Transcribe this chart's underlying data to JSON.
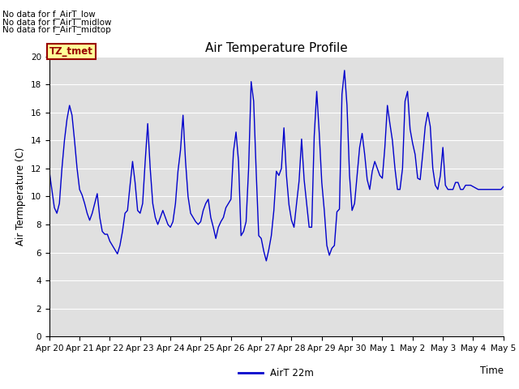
{
  "title": "Air Temperature Profile",
  "xlabel": "Time",
  "ylabel": "Air Termperature (C)",
  "ylim": [
    0,
    20
  ],
  "yticks": [
    0,
    2,
    4,
    6,
    8,
    10,
    12,
    14,
    16,
    18,
    20
  ],
  "line_color": "#0000cc",
  "background_color": "#e0e0e0",
  "legend_label": "AirT 22m",
  "no_data_texts": [
    "No data for f_AirT_low",
    "No data for f_AirT_midlow",
    "No data for f_AirT_midtop"
  ],
  "legend_box_color": "#990000",
  "legend_box_bg": "#ffff99",
  "x_tick_labels": [
    "Apr 20",
    "Apr 21",
    "Apr 22",
    "Apr 23",
    "Apr 24",
    "Apr 25",
    "Apr 26",
    "Apr 27",
    "Apr 28",
    "Apr 29",
    "Apr 30",
    "May 1",
    "May 2",
    "May 3",
    "May 4",
    "May 5"
  ],
  "time_values": [
    0.0,
    0.083,
    0.167,
    0.25,
    0.333,
    0.417,
    0.5,
    0.583,
    0.667,
    0.75,
    0.833,
    0.917,
    1.0,
    1.083,
    1.167,
    1.25,
    1.333,
    1.417,
    1.5,
    1.583,
    1.667,
    1.75,
    1.833,
    1.917,
    2.0,
    2.083,
    2.167,
    2.25,
    2.333,
    2.417,
    2.5,
    2.583,
    2.667,
    2.75,
    2.833,
    2.917,
    3.0,
    3.083,
    3.167,
    3.25,
    3.333,
    3.417,
    3.5,
    3.583,
    3.667,
    3.75,
    3.833,
    3.917,
    4.0,
    4.083,
    4.167,
    4.25,
    4.333,
    4.417,
    4.5,
    4.583,
    4.667,
    4.75,
    4.833,
    4.917,
    5.0,
    5.083,
    5.167,
    5.25,
    5.333,
    5.417,
    5.5,
    5.583,
    5.667,
    5.75,
    5.833,
    5.917,
    6.0,
    6.083,
    6.167,
    6.25,
    6.333,
    6.417,
    6.5,
    6.583,
    6.667,
    6.75,
    6.833,
    6.917,
    7.0,
    7.083,
    7.167,
    7.25,
    7.333,
    7.417,
    7.5,
    7.583,
    7.667,
    7.75,
    7.833,
    7.917,
    8.0,
    8.083,
    8.167,
    8.25,
    8.333,
    8.417,
    8.5,
    8.583,
    8.667,
    8.75,
    8.833,
    8.917,
    9.0,
    9.083,
    9.167,
    9.25,
    9.333,
    9.417,
    9.5,
    9.583,
    9.667,
    9.75,
    9.833,
    9.917,
    10.0,
    10.083,
    10.167,
    10.25,
    10.333,
    10.417,
    10.5,
    10.583,
    10.667,
    10.75,
    10.833,
    10.917,
    11.0,
    11.083,
    11.167,
    11.25,
    11.333,
    11.417,
    11.5,
    11.583,
    11.667,
    11.75,
    11.833,
    11.917,
    12.0,
    12.083,
    12.167,
    12.25,
    12.333,
    12.417,
    12.5,
    12.583,
    12.667,
    12.75,
    12.833,
    12.917,
    13.0,
    13.083,
    13.167,
    13.25,
    13.333,
    13.417,
    13.5,
    13.583,
    13.667,
    13.75,
    13.833,
    13.917,
    14.0,
    14.083,
    14.167,
    14.25,
    14.333,
    14.417,
    14.5,
    14.583,
    14.667,
    14.75,
    14.833,
    14.917,
    15.0
  ],
  "temp_values": [
    11.8,
    10.5,
    9.2,
    8.8,
    9.5,
    12.0,
    14.0,
    15.5,
    16.5,
    15.8,
    14.0,
    12.0,
    10.5,
    10.1,
    9.5,
    8.8,
    8.3,
    8.8,
    9.5,
    10.2,
    8.5,
    7.5,
    7.3,
    7.3,
    6.8,
    6.5,
    6.2,
    5.9,
    6.5,
    7.5,
    8.8,
    9.0,
    10.8,
    12.5,
    11.0,
    9.0,
    8.8,
    9.5,
    12.5,
    15.2,
    12.0,
    9.5,
    8.5,
    8.0,
    8.5,
    9.0,
    8.5,
    8.0,
    7.8,
    8.2,
    9.5,
    11.8,
    13.3,
    15.8,
    12.5,
    10.0,
    8.8,
    8.5,
    8.2,
    8.0,
    8.2,
    9.0,
    9.5,
    9.8,
    8.5,
    7.8,
    7.0,
    7.8,
    8.2,
    8.5,
    9.2,
    9.5,
    9.8,
    13.2,
    14.6,
    12.5,
    7.2,
    7.5,
    8.2,
    12.0,
    18.2,
    16.8,
    11.8,
    7.2,
    7.0,
    6.1,
    5.4,
    6.2,
    7.2,
    9.0,
    11.8,
    11.5,
    12.0,
    14.9,
    11.5,
    9.4,
    8.3,
    7.8,
    9.5,
    11.1,
    14.1,
    11.2,
    9.5,
    7.8,
    7.8,
    14.3,
    17.5,
    14.5,
    11.0,
    9.0,
    6.5,
    5.8,
    6.3,
    6.5,
    8.9,
    9.1,
    17.3,
    19.0,
    16.5,
    11.5,
    9.0,
    9.5,
    11.5,
    13.5,
    14.5,
    13.0,
    11.2,
    10.5,
    11.8,
    12.5,
    12.0,
    11.5,
    11.3,
    13.5,
    16.5,
    15.2,
    14.0,
    12.0,
    10.5,
    10.5,
    12.0,
    16.8,
    17.5,
    14.8,
    13.8,
    13.0,
    11.3,
    11.2,
    13.0,
    15.0,
    16.0,
    15.0,
    12.0,
    10.8,
    10.5,
    11.5,
    13.5,
    10.8,
    10.5,
    10.5,
    10.5,
    11.0,
    11.0,
    10.5,
    10.5,
    10.8,
    10.8,
    10.8,
    10.7,
    10.6,
    10.5,
    10.5,
    10.5,
    10.5,
    10.5,
    10.5,
    10.5,
    10.5,
    10.5,
    10.5,
    10.7
  ]
}
